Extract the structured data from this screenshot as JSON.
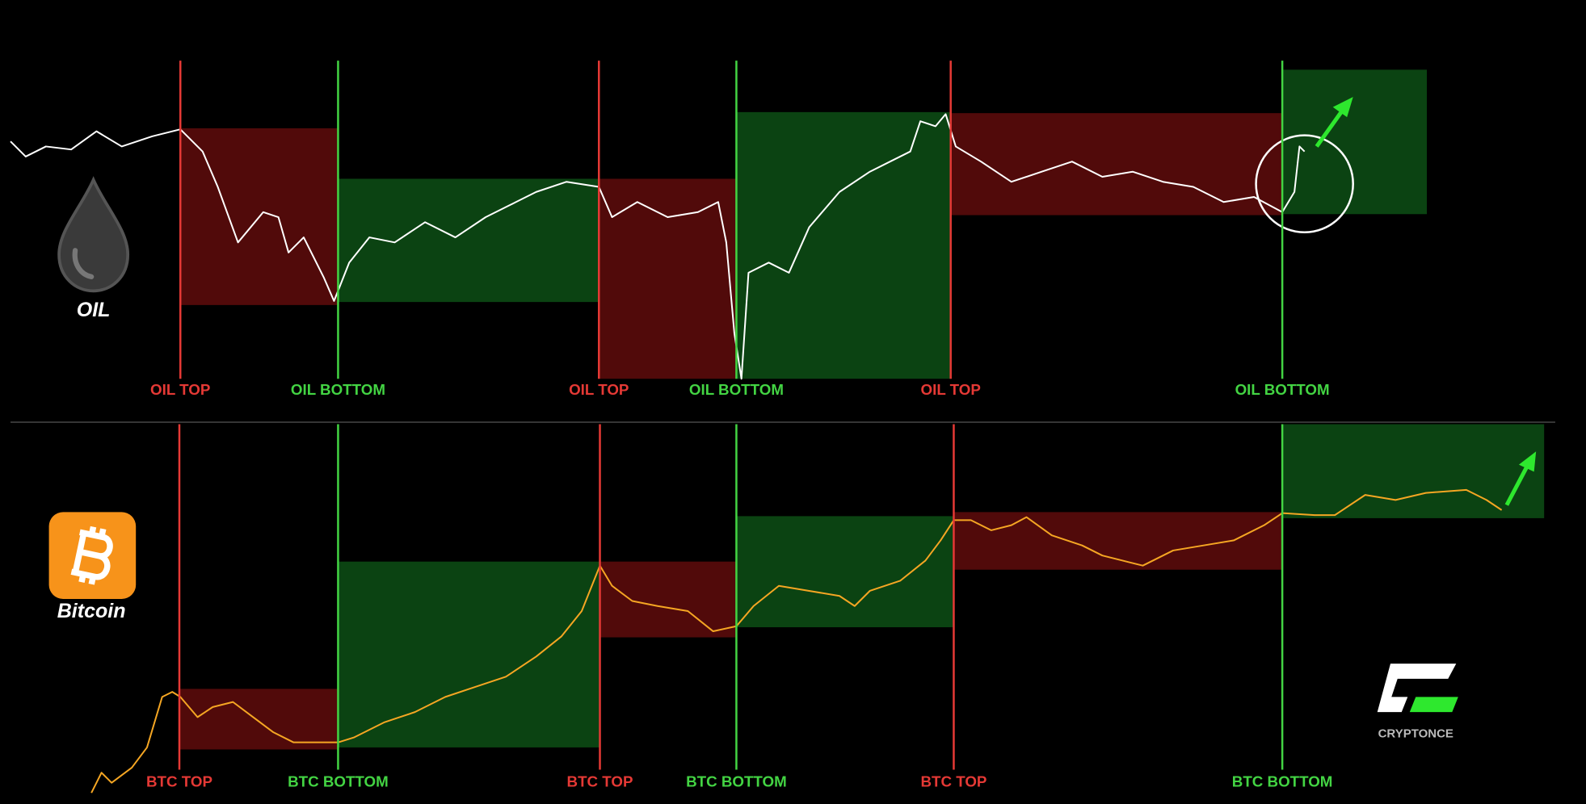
{
  "chart_data": [
    {
      "type": "line",
      "label": "OIL",
      "color": "#ffffff",
      "xlim": [
        0,
        1568
      ],
      "ylim": [
        0,
        315
      ],
      "x": [
        10,
        25,
        45,
        70,
        95,
        120,
        150,
        178,
        200,
        215,
        235,
        260,
        275,
        285,
        300,
        320,
        330,
        345,
        365,
        390,
        420,
        450,
        480,
        510,
        530,
        560,
        592,
        605,
        630,
        660,
        690,
        710,
        718,
        726,
        733,
        740,
        760,
        780,
        800,
        830,
        860,
        880,
        900,
        910,
        925,
        935,
        945,
        970,
        1000,
        1030,
        1060,
        1090,
        1120,
        1150,
        1180,
        1210,
        1240,
        1268,
        1280,
        1285,
        1290
      ],
      "values": [
        235,
        220,
        230,
        227,
        245,
        230,
        240,
        247,
        225,
        190,
        135,
        165,
        160,
        125,
        140,
        100,
        77,
        115,
        140,
        135,
        155,
        140,
        160,
        175,
        185,
        195,
        190,
        160,
        175,
        160,
        165,
        175,
        135,
        45,
        0,
        105,
        115,
        105,
        150,
        185,
        205,
        215,
        225,
        255,
        250,
        262,
        230,
        215,
        195,
        205,
        215,
        200,
        205,
        195,
        190,
        175,
        180,
        165,
        185,
        230,
        225
      ],
      "markers": [
        {
          "x": 178,
          "label": "OIL TOP",
          "color": "#e53935"
        },
        {
          "x": 334,
          "label": "OIL BOTTOM",
          "color": "#43d443"
        },
        {
          "x": 592,
          "label": "OIL TOP",
          "color": "#e53935"
        },
        {
          "x": 728,
          "label": "OIL BOTTOM",
          "color": "#43d443"
        },
        {
          "x": 940,
          "label": "OIL TOP",
          "color": "#e53935"
        },
        {
          "x": 1268,
          "label": "OIL BOTTOM",
          "color": "#43d443"
        }
      ],
      "zones": [
        {
          "x": [
            178,
            334
          ],
          "y": [
            73,
            248
          ],
          "color": "#5a0b0b"
        },
        {
          "x": [
            334,
            592
          ],
          "y": [
            76,
            198
          ],
          "color": "#0c4a14"
        },
        {
          "x": [
            592,
            728
          ],
          "y": [
            0,
            198
          ],
          "color": "#5a0b0b"
        },
        {
          "x": [
            728,
            940
          ],
          "y": [
            0,
            264
          ],
          "color": "#0c4a14"
        },
        {
          "x": [
            940,
            1268
          ],
          "y": [
            162,
            263
          ],
          "color": "#5a0b0b"
        },
        {
          "x": [
            1268,
            1411
          ],
          "y": [
            163,
            306
          ],
          "color": "#0c4a14"
        }
      ]
    },
    {
      "type": "line",
      "label": "Bitcoin",
      "color": "#f5a623",
      "xlim": [
        0,
        1568
      ],
      "ylim": [
        0,
        370
      ],
      "x": [
        90,
        100,
        110,
        130,
        145,
        160,
        170,
        178,
        195,
        210,
        230,
        250,
        270,
        290,
        310,
        334,
        350,
        380,
        410,
        440,
        470,
        500,
        530,
        555,
        575,
        593,
        605,
        625,
        650,
        680,
        705,
        728,
        745,
        770,
        800,
        830,
        845,
        860,
        890,
        915,
        930,
        943,
        960,
        980,
        1000,
        1015,
        1040,
        1070,
        1090,
        1110,
        1130,
        1160,
        1190,
        1220,
        1250,
        1268,
        1300,
        1320,
        1350,
        1380,
        1410,
        1450,
        1470,
        1485
      ],
      "values": [
        5,
        25,
        15,
        30,
        50,
        100,
        105,
        100,
        80,
        90,
        95,
        80,
        65,
        55,
        55,
        55,
        60,
        75,
        85,
        100,
        110,
        120,
        140,
        160,
        185,
        230,
        210,
        195,
        190,
        185,
        165,
        170,
        190,
        210,
        205,
        200,
        190,
        205,
        215,
        235,
        255,
        275,
        275,
        265,
        270,
        278,
        260,
        250,
        240,
        235,
        230,
        245,
        250,
        255,
        270,
        282,
        280,
        280,
        300,
        295,
        302,
        305,
        295,
        285
      ],
      "markers": [
        {
          "x": 177,
          "label": "BTC TOP",
          "color": "#e53935"
        },
        {
          "x": 334,
          "label": "BTC BOTTOM",
          "color": "#43d443"
        },
        {
          "x": 593,
          "label": "BTC TOP",
          "color": "#e53935"
        },
        {
          "x": 728,
          "label": "BTC BOTTOM",
          "color": "#43d443"
        },
        {
          "x": 943,
          "label": "BTC TOP",
          "color": "#e53935"
        },
        {
          "x": 1268,
          "label": "BTC BOTTOM",
          "color": "#43d443"
        }
      ],
      "zones": [
        {
          "x": [
            177,
            334
          ],
          "y": [
            48,
            108
          ],
          "color": "#5a0b0b"
        },
        {
          "x": [
            334,
            593
          ],
          "y": [
            50,
            234
          ],
          "color": "#0c4a14"
        },
        {
          "x": [
            593,
            728
          ],
          "y": [
            159,
            234
          ],
          "color": "#5a0b0b"
        },
        {
          "x": [
            728,
            943
          ],
          "y": [
            169,
            279
          ],
          "color": "#0c4a14"
        },
        {
          "x": [
            943,
            1268
          ],
          "y": [
            226,
            283
          ],
          "color": "#5a0b0b"
        },
        {
          "x": [
            1268,
            1527
          ],
          "y": [
            277,
            370
          ],
          "color": "#0c4a14"
        }
      ]
    }
  ],
  "watermark": "CRYPTONCE"
}
